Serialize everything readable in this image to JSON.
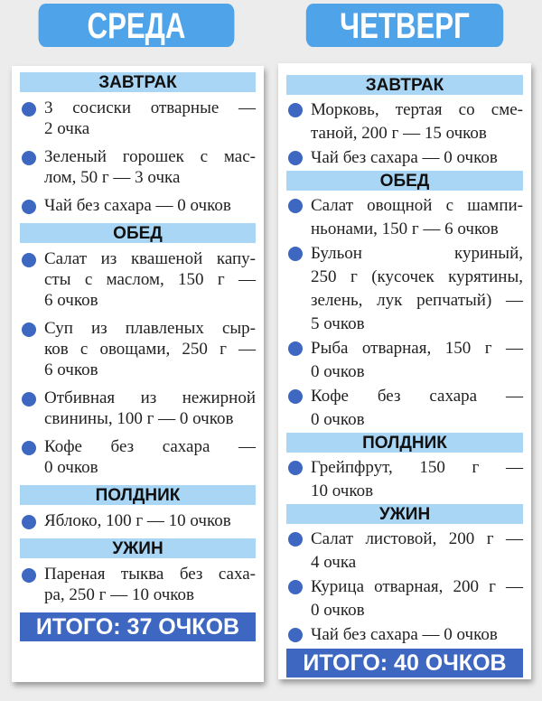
{
  "columns": [
    {
      "day": "СРЕДА",
      "sections": [
        {
          "title": "ЗАВТРАК",
          "items": [
            [
              "3 сосиски отварные —",
              "2 очка"
            ],
            [
              "Зеленый горошек с мас-",
              "лом, 50 г — 3 очка"
            ],
            [
              "Чай без сахара — 0 очков"
            ]
          ]
        },
        {
          "title": "ОБЕД",
          "items": [
            [
              "Салат из квашеной капу-",
              "сты с маслом, 150 г —",
              "6 очков"
            ],
            [
              "Суп из плавленых сыр-",
              "ков с овощами, 250 г —",
              "6 очков"
            ],
            [
              "Отбивная из нежирной",
              "свинины, 100 г — 0 очков"
            ],
            [
              "Кофе без сахара —",
              "0 очков"
            ]
          ]
        },
        {
          "title": "ПОЛДНИК",
          "items": [
            [
              "Яблоко, 100 г — 10 очков"
            ]
          ]
        },
        {
          "title": "УЖИН",
          "items": [
            [
              "Пареная тыква без саха-",
              "ра, 250 г — 10 очков"
            ]
          ]
        }
      ],
      "total": "ИТОГО: 37 ОЧКОВ"
    },
    {
      "day": "ЧЕТВЕРГ",
      "sections": [
        {
          "title": "ЗАВТРАК",
          "items": [
            [
              "Морковь, тертая со сме-",
              "таной, 200 г — 15 очков"
            ],
            [
              "Чай без сахара — 0 очков"
            ]
          ]
        },
        {
          "title": "ОБЕД",
          "items": [
            [
              "Салат овощной с шампи-",
              "ньонами, 150 г — 6 очков"
            ],
            [
              "Бульон куриный,",
              "250 г (кусочек курятины,",
              "зелень, лук репчатый) —",
              "5 очков"
            ],
            [
              "Рыба отварная, 150 г —",
              "0 очков"
            ],
            [
              "Кофе без сахара —",
              "0 очков"
            ]
          ]
        },
        {
          "title": "ПОЛДНИК",
          "items": [
            [
              "Грейпфрут, 150 г —",
              "10 очков"
            ]
          ]
        },
        {
          "title": "УЖИН",
          "items": [
            [
              "Салат листовой, 200 г —",
              "4 очка"
            ],
            [
              "Курица отварная, 200 г —",
              "0 очков"
            ],
            [
              "Чай без сахара — 0 очков"
            ]
          ]
        }
      ],
      "total": "ИТОГО: 40 ОЧКОВ"
    }
  ],
  "colors": {
    "header": "#4fa3e8",
    "section_bar": "#a9d6f5",
    "bullet": "#3d67c0",
    "total_bar": "#3d67c0"
  }
}
